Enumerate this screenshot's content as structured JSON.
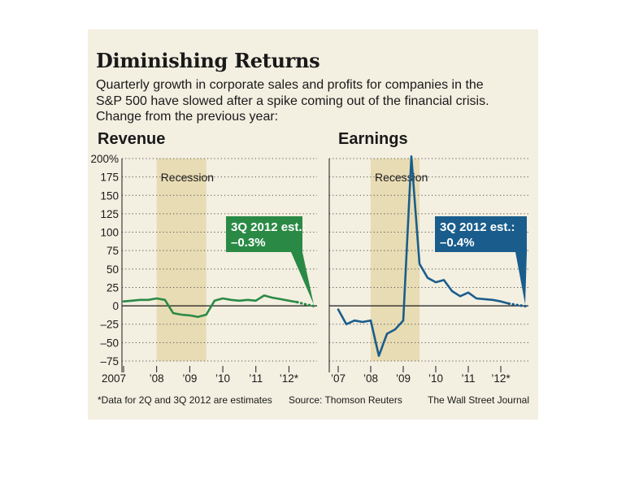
{
  "title": "Diminishing Returns",
  "subtitle_lines": [
    "Quarterly growth in corporate sales and profits for companies in the",
    "S&P 500 have slowed after a spike coming out of the financial crisis.",
    "Change from the previous year:"
  ],
  "footnote": "*Data for 2Q and 3Q 2012 are estimates",
  "source": "Source: Thomson Reuters",
  "credit": "The Wall Street Journal",
  "colors": {
    "revenue": "#2a8a45",
    "earnings": "#1a5d8c",
    "recession": "#e8dcb4",
    "background": "#f3efe1"
  },
  "chart_data": [
    {
      "type": "line",
      "title": "Revenue",
      "y_ticks": [
        200,
        175,
        150,
        125,
        100,
        75,
        50,
        25,
        0,
        -25,
        -50,
        -75
      ],
      "y_tick_labels": [
        "200%",
        "175",
        "150",
        "125",
        "100",
        "75",
        "50",
        "25",
        "0",
        "–25",
        "–50",
        "–75"
      ],
      "ylim": [
        -75,
        200
      ],
      "x_tick_labels": [
        {
          "label": "2007",
          "x": 2007.0
        },
        {
          "label": "’08",
          "x": 2008.0
        },
        {
          "label": "’09",
          "x": 2009.0
        },
        {
          "label": "’10",
          "x": 2010.0
        },
        {
          "label": "’11",
          "x": 2011.0
        },
        {
          "label": "’12*",
          "x": 2012.0
        }
      ],
      "xlim": [
        2007.0,
        2012.85
      ],
      "recession": {
        "label": "Recession",
        "start": 2008.0,
        "end": 2009.5
      },
      "series": [
        {
          "x": [
            2007.0,
            2007.25,
            2007.5,
            2007.75,
            2008.0,
            2008.25,
            2008.5,
            2008.75,
            2009.0,
            2009.25,
            2009.5,
            2009.75,
            2010.0,
            2010.25,
            2010.5,
            2010.75,
            2011.0,
            2011.25,
            2011.5,
            2011.75,
            2012.0,
            2012.25
          ],
          "y": [
            6,
            7,
            8,
            8,
            10,
            8,
            -10,
            -12,
            -13,
            -15,
            -12,
            7,
            10,
            8,
            7,
            8,
            7,
            14,
            11,
            9,
            7,
            5
          ]
        },
        {
          "estimate": true,
          "x": [
            2012.25,
            2012.5,
            2012.75
          ],
          "y": [
            5,
            2,
            -0.3
          ]
        }
      ],
      "annotation": {
        "lines": [
          "3Q 2012 est.:",
          "–0.3%"
        ],
        "x": 2012.75,
        "y": -0.3
      }
    },
    {
      "type": "line",
      "title": "Earnings",
      "y_ticks": [
        200,
        175,
        150,
        125,
        100,
        75,
        50,
        25,
        0,
        -25,
        -50,
        -75
      ],
      "ylim": [
        -75,
        200
      ],
      "x_tick_labels": [
        {
          "label": "’07",
          "x": 2007.0
        },
        {
          "label": "’08",
          "x": 2008.0
        },
        {
          "label": "’09",
          "x": 2009.0
        },
        {
          "label": "’10",
          "x": 2010.0
        },
        {
          "label": "’11",
          "x": 2011.0
        },
        {
          "label": "’12*",
          "x": 2012.0
        }
      ],
      "xlim": [
        2007.0,
        2012.85
      ],
      "recession": {
        "label": "Recession",
        "start": 2008.0,
        "end": 2009.5
      },
      "series": [
        {
          "x": [
            2007.0,
            2007.25,
            2007.5,
            2007.75,
            2008.0,
            2008.25,
            2008.5,
            2008.75,
            2009.0,
            2009.25,
            2009.5,
            2009.75,
            2010.0,
            2010.25,
            2010.5,
            2010.75,
            2011.0,
            2011.25,
            2011.5,
            2011.75,
            2012.0,
            2012.25
          ],
          "y": [
            -5,
            -25,
            -20,
            -22,
            -20,
            -68,
            -38,
            -32,
            -20,
            203,
            57,
            38,
            32,
            35,
            20,
            13,
            18,
            10,
            9,
            8,
            6,
            3
          ]
        },
        {
          "estimate": true,
          "x": [
            2012.25,
            2012.5,
            2012.75
          ],
          "y": [
            3,
            1,
            -0.4
          ]
        }
      ],
      "annotation": {
        "lines": [
          "3Q 2012 est.:",
          "–0.4%"
        ],
        "x": 2012.75,
        "y": -0.4
      }
    }
  ]
}
